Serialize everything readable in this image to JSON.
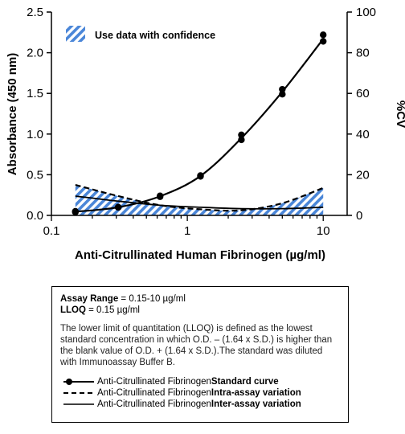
{
  "chart_data": {
    "type": "line",
    "xlabel": "Anti-Citrullinated Human Fibrinogen (µg/ml)",
    "ylabel": "Absorbance (450 nm)",
    "y2label": "%CV",
    "xscale": "log",
    "xlim": [
      0.1,
      15
    ],
    "ylim": [
      0,
      2.5
    ],
    "y2lim": [
      0,
      100
    ],
    "x_ticks": [
      0.1,
      1,
      10
    ],
    "x_tick_labels": [
      "0.1",
      "1",
      "10"
    ],
    "y_ticks": [
      0,
      0.5,
      1.0,
      1.5,
      2.0,
      2.5
    ],
    "y_tick_labels": [
      "0.0",
      "0.5",
      "1.0",
      "1.5",
      "2.0",
      "2.5"
    ],
    "y2_ticks": [
      0,
      20,
      40,
      60,
      80,
      100
    ],
    "y2_tick_labels": [
      "0",
      "20",
      "40",
      "60",
      "80",
      "100"
    ],
    "legend_label": "Use data with confidence",
    "legend_position": "top-left",
    "colors": {
      "hatch": "#4a86d8",
      "line": "#000000"
    },
    "series": [
      {
        "name": "Anti-Citrullinated Fibrinogen Standard curve",
        "axis": "left",
        "style": "line-with-markers",
        "points": [
          [
            0.15,
            0.04
          ],
          [
            0.15,
            0.05
          ],
          [
            0.31,
            0.1
          ],
          [
            0.31,
            0.1
          ],
          [
            0.63,
            0.23
          ],
          [
            0.63,
            0.24
          ],
          [
            1.25,
            0.48
          ],
          [
            1.25,
            0.49
          ],
          [
            2.5,
            0.93
          ],
          [
            2.5,
            0.99
          ],
          [
            5,
            1.49
          ],
          [
            5,
            1.55
          ],
          [
            10,
            2.14
          ],
          [
            10,
            2.22
          ]
        ],
        "curve": [
          [
            0.15,
            0.045
          ],
          [
            0.31,
            0.1
          ],
          [
            0.63,
            0.235
          ],
          [
            1.25,
            0.485
          ],
          [
            2.5,
            0.95
          ],
          [
            5,
            1.52
          ],
          [
            10,
            2.17
          ]
        ]
      },
      {
        "name": "Anti-Citrullinated Fibrinogen Intra-assay variation",
        "axis": "right",
        "style": "dashed",
        "x": [
          0.15,
          0.31,
          0.63,
          1.25,
          2.5,
          5,
          10
        ],
        "values": [
          15,
          9.5,
          5,
          3,
          2.5,
          6,
          13.5
        ]
      },
      {
        "name": "Anti-Citrullinated Fibrinogen Inter-assay variation",
        "axis": "right",
        "style": "solid",
        "x": [
          0.15,
          0.31,
          0.63,
          1.25,
          2.5,
          5,
          10
        ],
        "values": [
          9.5,
          7,
          5,
          4,
          3.3,
          3.3,
          4
        ]
      }
    ]
  },
  "info": {
    "range_label": "Assay Range",
    "range_value": " = 0.15-10 µg/ml",
    "lloq_label": "LLOQ",
    "lloq_value": " =  0.15 µg/ml",
    "description": "The lower limit of quantitation (LLOQ) is defined as the lowest standard concentration in which O.D. – (1.64 x S.D.) is higher than the blank value of O.D. + (1.64 x S.D.).The standard was diluted with Immunoassay Buffer B.",
    "legend": [
      {
        "prefix": "Anti-Citrullinated Fibrinogen ",
        "name": "Standard curve"
      },
      {
        "prefix": "Anti-Citrullinated Fibrinogen ",
        "name": "Intra-assay variation"
      },
      {
        "prefix": "Anti-Citrullinated Fibrinogen ",
        "name": "Inter-assay variation"
      }
    ]
  }
}
